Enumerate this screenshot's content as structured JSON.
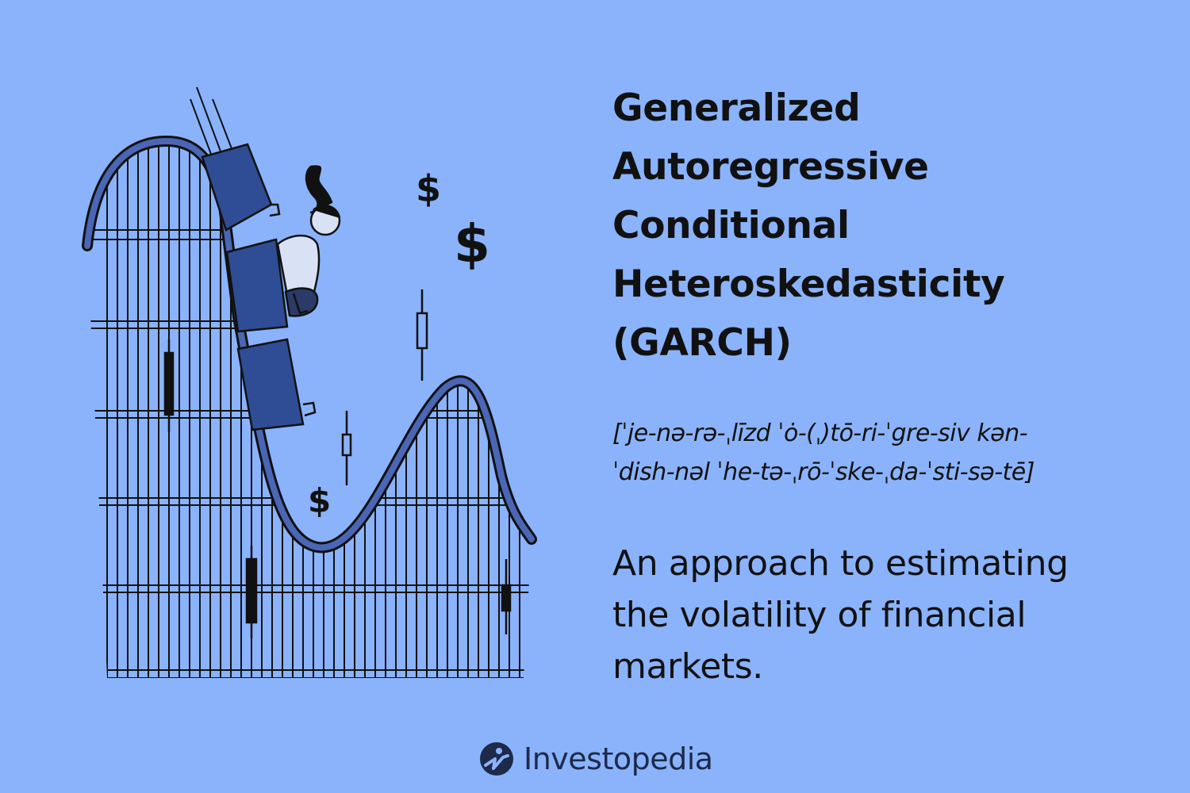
{
  "title_lines": [
    "Generalized",
    "Autoregressive",
    "Conditional",
    "Heteroskedasticity",
    "(GARCH)"
  ],
  "pronunciation_lines": [
    "[ˈje-nə-rə-ˌlīzd ˈȯ-(ˌ)tō-ri-ˈgre-siv kən-",
    "ˈdish-nəl ˈhe-tə-ˌrō-ˈske-ˌda-ˈsti-sə-tē]"
  ],
  "description_lines": [
    "An approach to estimating",
    "the volatility of financial",
    "markets."
  ],
  "dollar_signs": [
    "$",
    "$",
    "$"
  ],
  "brand": {
    "name": "Investopedia",
    "logo_icon": "investopedia-logo-icon"
  },
  "colors": {
    "background": "#8ab3fc",
    "track": "#4a66b5",
    "cart": "#2f4d94",
    "ink": "#111111"
  }
}
